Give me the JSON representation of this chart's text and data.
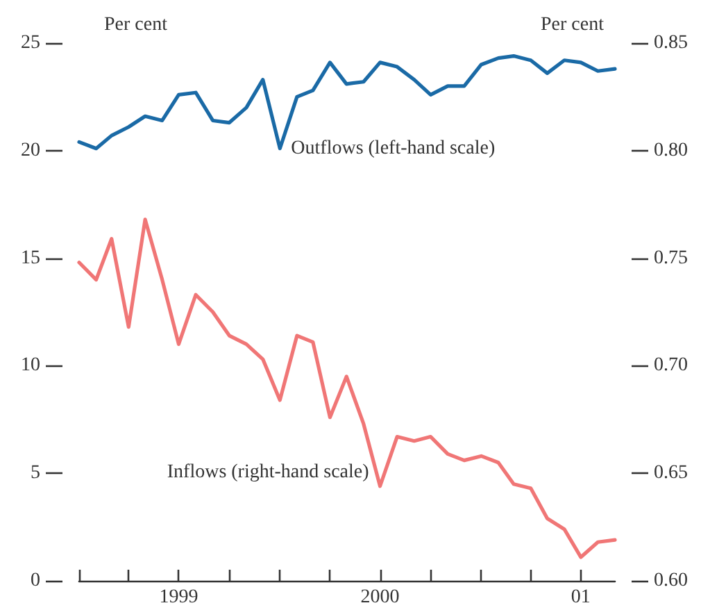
{
  "chart_data": {
    "type": "line",
    "ylabel": "Per cent",
    "y2label": "Per cent",
    "x": [
      "1999-01",
      "1999-02",
      "1999-03",
      "1999-04",
      "1999-05",
      "1999-06",
      "1999-07",
      "1999-08",
      "1999-09",
      "1999-10",
      "1999-11",
      "1999-12",
      "2000-01",
      "2000-02",
      "2000-03",
      "2000-04",
      "2000-05",
      "2000-06",
      "2000-07",
      "2000-08",
      "2000-09",
      "2000-10",
      "2000-11",
      "2000-12",
      "2001-01",
      "2001-02",
      "2001-03",
      "2001-04",
      "2001-05",
      "2001-06",
      "2001-07",
      "2001-08",
      "2001-09"
    ],
    "series": [
      {
        "name": "Outflows (left-hand scale)",
        "color": "#1a6aa6",
        "values": [
          20.4,
          20.1,
          20.7,
          21.1,
          21.6,
          21.4,
          22.6,
          22.7,
          21.4,
          21.3,
          22.0,
          23.3,
          20.1,
          22.5,
          22.8,
          24.1,
          23.1,
          23.2,
          24.1,
          23.9,
          23.3,
          22.6,
          23.0,
          23.0,
          24.0,
          24.3,
          24.4,
          24.2,
          23.6,
          24.2,
          24.1,
          23.7,
          23.8
        ]
      },
      {
        "name": "Inflows (right-hand scale)",
        "color": "#f07676",
        "axis": "y2",
        "values": [
          0.748,
          0.74,
          0.759,
          0.718,
          0.768,
          0.74,
          0.71,
          0.733,
          0.725,
          0.714,
          0.71,
          0.703,
          0.684,
          0.714,
          0.711,
          0.676,
          0.695,
          0.673,
          0.644,
          0.667,
          0.665,
          0.667,
          0.659,
          0.656,
          0.658,
          0.655,
          0.645,
          0.643,
          0.629,
          0.624,
          0.611,
          0.618,
          0.619
        ]
      }
    ],
    "xlim": [
      "1999-01",
      "2001-09"
    ],
    "xticks": [
      {
        "value": "1999-01",
        "label": null
      },
      {
        "value": "1999-04",
        "label": null
      },
      {
        "value": "1999-07",
        "label": "1999"
      },
      {
        "value": "1999-10",
        "label": null
      },
      {
        "value": "2000-01",
        "label": null
      },
      {
        "value": "2000-04",
        "label": null
      },
      {
        "value": "2000-07",
        "label": "2000"
      },
      {
        "value": "2000-10",
        "label": null
      },
      {
        "value": "2001-01",
        "label": null
      },
      {
        "value": "2001-04",
        "label": null
      },
      {
        "value": "2001-07",
        "label": "01"
      }
    ],
    "ylim": [
      0,
      25
    ],
    "yticks": [
      0,
      5,
      10,
      15,
      20,
      25
    ],
    "y2lim": [
      0.6,
      0.85
    ],
    "y2ticks": [
      {
        "value": 0.6,
        "label": "0.60"
      },
      {
        "value": 0.65,
        "label": "0.65"
      },
      {
        "value": 0.7,
        "label": "0.70"
      },
      {
        "value": 0.75,
        "label": "0.75"
      },
      {
        "value": 0.8,
        "label": "0.80"
      },
      {
        "value": 0.85,
        "label": "0.85"
      }
    ],
    "grid": false,
    "legend": false,
    "marker": "none",
    "line_style": "solid"
  }
}
